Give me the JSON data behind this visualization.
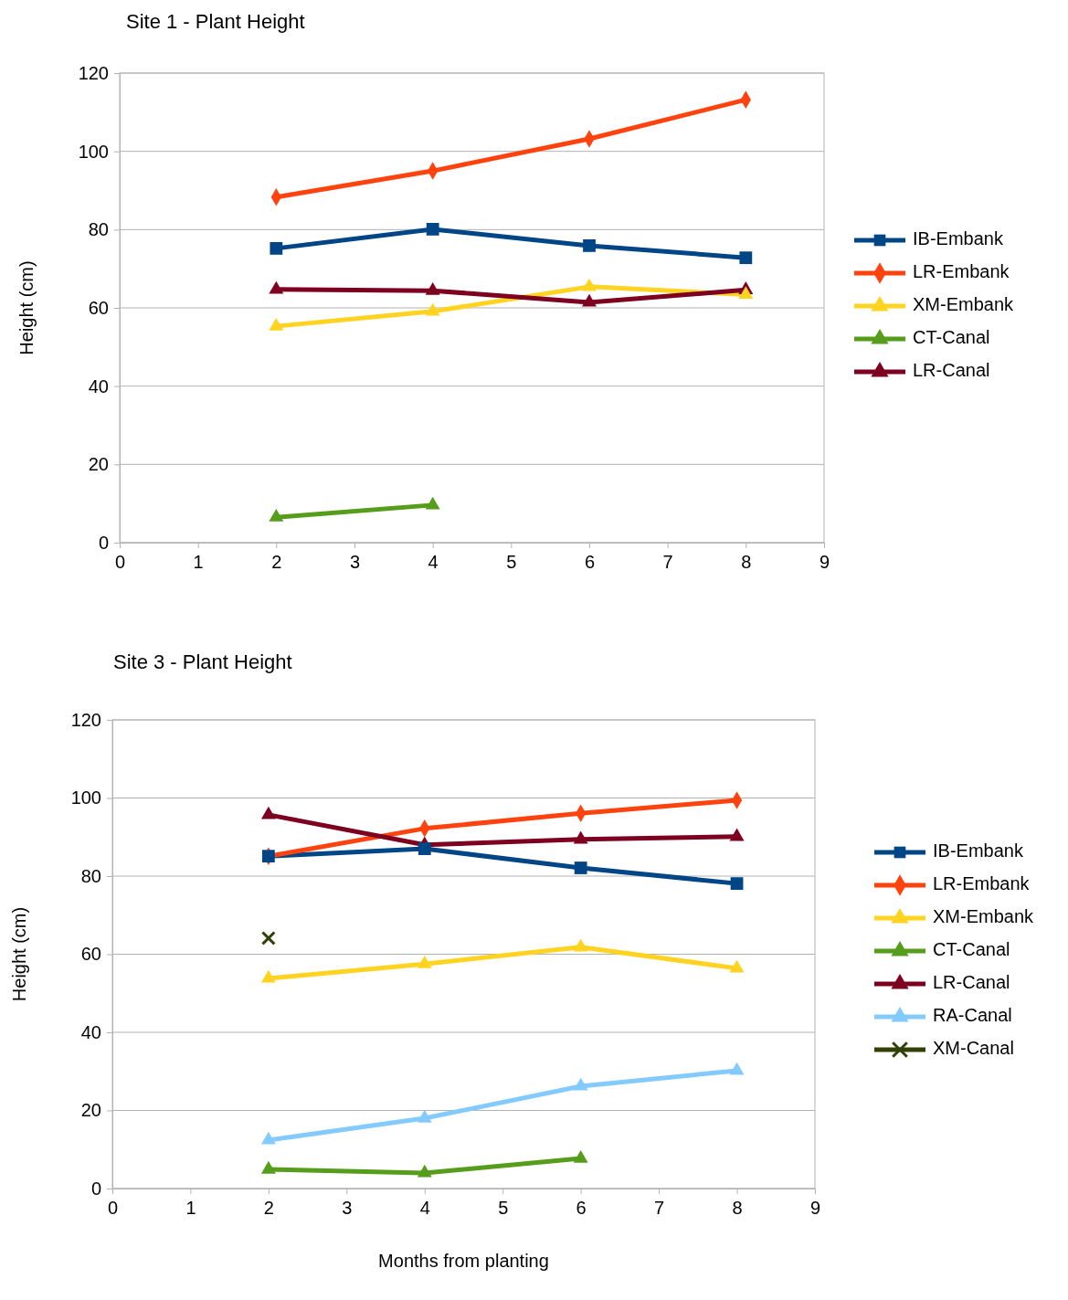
{
  "chart_data": [
    {
      "type": "line",
      "title": "Site 1 - Plant Height",
      "ylabel": "Height (cm)",
      "xlim": [
        0,
        9
      ],
      "xticks": [
        0,
        1,
        2,
        3,
        4,
        5,
        6,
        7,
        8,
        9
      ],
      "ylim": [
        0,
        120
      ],
      "yticks": [
        0,
        20,
        40,
        60,
        80,
        100,
        120
      ],
      "grid": "y",
      "legend": "right",
      "x": [
        2,
        4,
        6,
        8
      ],
      "series": [
        {
          "name": "IB-Embank",
          "color": "#004586",
          "marker": "square",
          "values": [
            75.2,
            80.1,
            75.9,
            72.8
          ]
        },
        {
          "name": "LR-Embank",
          "color": "#ff420e",
          "marker": "diamond",
          "values": [
            88.3,
            95.0,
            103.2,
            113.2
          ]
        },
        {
          "name": "XM-Embank",
          "color": "#ffd320",
          "marker": "triangle",
          "values": [
            55.3,
            59.1,
            65.4,
            63.4
          ]
        },
        {
          "name": "CT-Canal",
          "color": "#579d1c",
          "marker": "triangle",
          "values": [
            6.5,
            9.6,
            null,
            null
          ]
        },
        {
          "name": "LR-Canal",
          "color": "#7e0021",
          "marker": "triangle",
          "values": [
            64.7,
            64.4,
            61.4,
            64.6
          ]
        }
      ]
    },
    {
      "type": "line",
      "title": "Site 3 - Plant Height",
      "xlabel": "Months from planting",
      "ylabel": "Height (cm)",
      "xlim": [
        0,
        9
      ],
      "xticks": [
        0,
        1,
        2,
        3,
        4,
        5,
        6,
        7,
        8,
        9
      ],
      "ylim": [
        0,
        120
      ],
      "yticks": [
        0,
        20,
        40,
        60,
        80,
        100,
        120
      ],
      "grid": "y",
      "legend": "right",
      "x": [
        2,
        4,
        6,
        8
      ],
      "series": [
        {
          "name": "IB-Embank",
          "color": "#004586",
          "marker": "square",
          "values": [
            85.1,
            87.0,
            82.1,
            78.1
          ]
        },
        {
          "name": "LR-Embank",
          "color": "#ff420e",
          "marker": "diamond",
          "values": [
            85.1,
            92.2,
            96.1,
            99.4
          ]
        },
        {
          "name": "XM-Embank",
          "color": "#ffd320",
          "marker": "triangle",
          "values": [
            53.8,
            57.5,
            61.8,
            56.4
          ]
        },
        {
          "name": "CT-Canal",
          "color": "#579d1c",
          "marker": "triangle",
          "values": [
            4.9,
            4.0,
            7.7,
            null
          ]
        },
        {
          "name": "LR-Canal",
          "color": "#7e0021",
          "marker": "triangle",
          "values": [
            95.7,
            88.0,
            89.4,
            90.1
          ]
        },
        {
          "name": "RA-Canal",
          "color": "#83caff",
          "marker": "triangle",
          "values": [
            12.4,
            18.0,
            26.2,
            30.2
          ]
        },
        {
          "name": "XM-Canal",
          "color": "#314004",
          "marker": "cross",
          "values": [
            64.1,
            null,
            null,
            null
          ]
        }
      ]
    }
  ]
}
